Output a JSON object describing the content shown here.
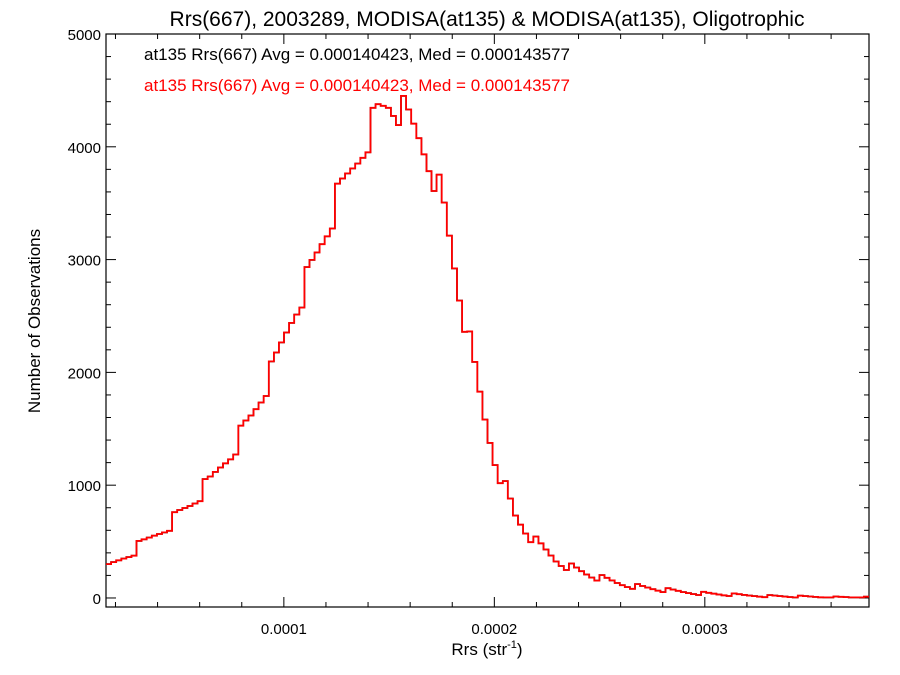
{
  "chart_data": {
    "type": "line",
    "title": "Rrs(667), 2003289, MODISA(at135) & MODISA(at135), Oligotrophic",
    "xlabel": "Rrs (str",
    "xlabel_sup": "-1",
    "xlabel_close": ")",
    "ylabel": "Number of Observations",
    "xlim": [
      1.55e-05,
      0.000378
    ],
    "ylim": [
      -80,
      5000
    ],
    "xticks": [
      0.0001,
      0.0002,
      0.0003
    ],
    "xtick_labels": [
      "0.0001",
      "0.0002",
      "0.0003"
    ],
    "yticks": [
      0,
      1000,
      2000,
      3000,
      4000,
      5000
    ],
    "ytick_labels": [
      "0",
      "1000",
      "2000",
      "3000",
      "4000",
      "5000"
    ],
    "grid": false,
    "legend": "top-left",
    "annotations": [
      {
        "text": "at135 Rrs(667) Avg = 0.000140423, Med = 0.000143577",
        "color": "#000000"
      },
      {
        "text": "at135 Rrs(667) Avg = 0.000140423, Med = 0.000143577",
        "color": "#ff0000"
      }
    ],
    "series": [
      {
        "color": "#000000",
        "x": [
          1.55e-05,
          2.5e-05,
          3.5e-05,
          4.5e-05,
          5.5e-05,
          6.5e-05,
          7.5e-05,
          8.5e-05,
          9.5e-05,
          0.000105,
          0.000115,
          0.000125,
          0.000135,
          0.00014,
          0.000145,
          0.00015,
          0.000155,
          0.00016,
          0.000165,
          0.00017,
          0.000175,
          0.00018,
          0.000185,
          0.00019,
          0.000195,
          0.0002,
          0.000205,
          0.00021,
          0.00022,
          0.00023,
          0.00024,
          0.00025,
          0.00026,
          0.00027,
          0.00028,
          0.00029,
          0.0003,
          0.00031,
          0.00032,
          0.00033,
          0.00034,
          0.00035,
          0.00036,
          0.00037,
          0.000378
        ],
        "y": [
          250,
          370,
          500,
          650,
          820,
          1020,
          1300,
          1620,
          2020,
          2550,
          3000,
          3500,
          3900,
          4120,
          4300,
          4380,
          4330,
          4200,
          4050,
          3850,
          3550,
          3050,
          2550,
          2080,
          1620,
          1260,
          980,
          720,
          480,
          330,
          240,
          175,
          125,
          95,
          70,
          52,
          40,
          30,
          22,
          17,
          13,
          10,
          8,
          6,
          5
        ]
      },
      {
        "color": "#ff0000",
        "x": [
          1.55e-05,
          2.5e-05,
          3.5e-05,
          4.5e-05,
          5.5e-05,
          6.5e-05,
          7.5e-05,
          8.5e-05,
          9.5e-05,
          0.000105,
          0.000115,
          0.000125,
          0.000135,
          0.00014,
          0.000145,
          0.00015,
          0.000155,
          0.00016,
          0.000165,
          0.00017,
          0.000175,
          0.00018,
          0.000185,
          0.00019,
          0.000195,
          0.0002,
          0.000205,
          0.00021,
          0.00022,
          0.00023,
          0.00024,
          0.00025,
          0.00026,
          0.00027,
          0.00028,
          0.00029,
          0.0003,
          0.00031,
          0.00032,
          0.00033,
          0.00034,
          0.00035,
          0.00036,
          0.00037,
          0.000378
        ],
        "y": [
          250,
          370,
          500,
          650,
          820,
          1020,
          1300,
          1620,
          2020,
          2550,
          3000,
          3500,
          3900,
          4120,
          4300,
          4380,
          4330,
          4200,
          4050,
          3850,
          3550,
          3050,
          2550,
          2080,
          1620,
          1260,
          980,
          720,
          480,
          330,
          240,
          175,
          125,
          95,
          70,
          52,
          40,
          30,
          22,
          17,
          13,
          10,
          8,
          6,
          5
        ]
      }
    ]
  }
}
